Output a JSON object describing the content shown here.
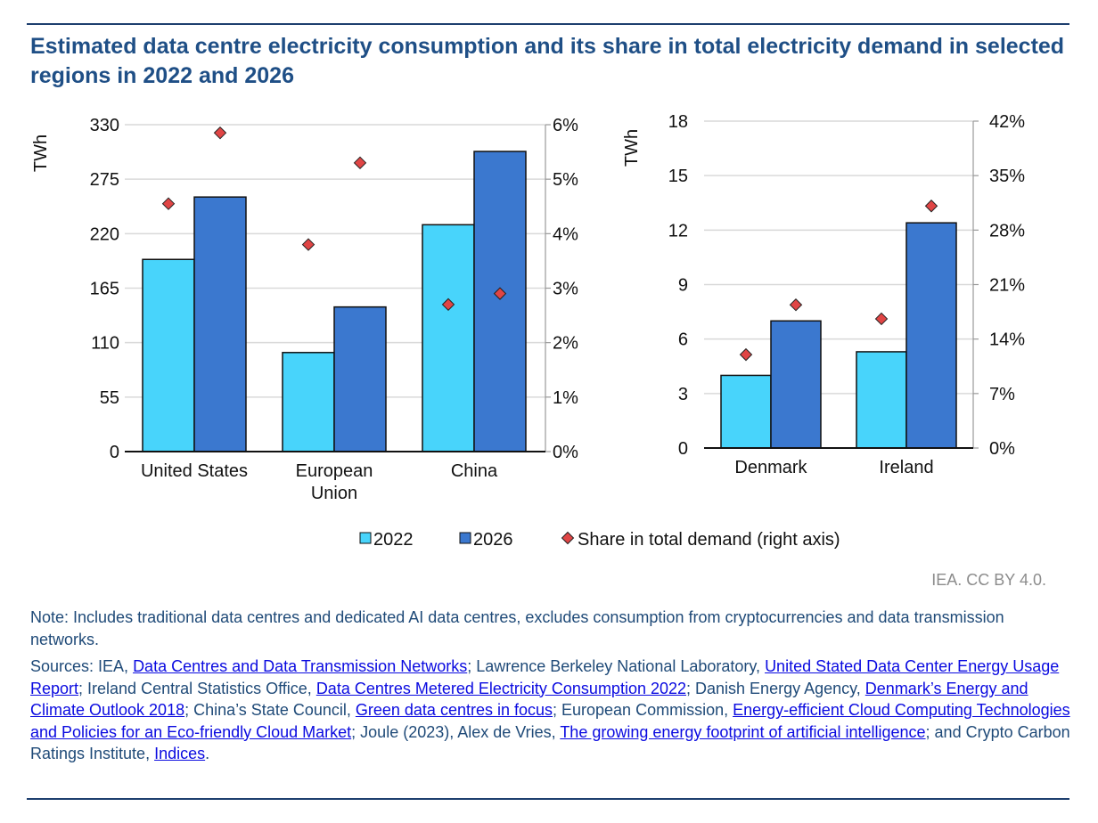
{
  "title": "Estimated data centre electricity consumption and its share in total electricity demand in selected regions in 2022 and 2026",
  "colors": {
    "y2022": "#48d4fb",
    "y2026": "#3b78cf",
    "share": "#e04545",
    "title": "#1f4f86"
  },
  "chart_data": [
    {
      "type": "bar",
      "categories": [
        "United States",
        "European Union",
        "China"
      ],
      "series": [
        {
          "name": "2022",
          "values": [
            194,
            100,
            229
          ]
        },
        {
          "name": "2026",
          "values": [
            257,
            146,
            303
          ]
        }
      ],
      "share_series": {
        "name": "Share in total demand (right axis)",
        "type": "scatter",
        "values_2022": [
          4.55,
          3.8,
          2.7
        ],
        "values_2026": [
          5.85,
          5.3,
          2.9
        ]
      },
      "ylabel": "TWh",
      "ylim": [
        0,
        330
      ],
      "yticks": [
        "0",
        "55",
        "110",
        "165",
        "220",
        "275",
        "330"
      ],
      "y2lim": [
        0,
        6
      ],
      "y2ticks": [
        "0%",
        "1%",
        "2%",
        "3%",
        "4%",
        "5%",
        "6%"
      ],
      "grid": true
    },
    {
      "type": "bar",
      "categories": [
        "Denmark",
        "Ireland"
      ],
      "series": [
        {
          "name": "2022",
          "values": [
            4.0,
            5.3
          ]
        },
        {
          "name": "2026",
          "values": [
            7.0,
            12.4
          ]
        }
      ],
      "share_series": {
        "name": "Share in total demand (right axis)",
        "type": "scatter",
        "values_2022": [
          12,
          16.6
        ],
        "values_2026": [
          18.4,
          31.1
        ]
      },
      "ylabel": "TWh",
      "ylim": [
        0,
        18
      ],
      "yticks": [
        "0",
        "3",
        "6",
        "9",
        "12",
        "15",
        "18"
      ],
      "y2lim": [
        0,
        42
      ],
      "y2ticks": [
        "0%",
        "7%",
        "14%",
        "21%",
        "28%",
        "35%",
        "42%"
      ],
      "grid": true
    }
  ],
  "legend": {
    "items": [
      "2022",
      "2026",
      "Share in total demand (right axis)"
    ],
    "placement": "bottom"
  },
  "credit": "IEA. CC BY 4.0.",
  "note": "Note: Includes traditional data centres and dedicated AI data centres, excludes consumption from cryptocurrencies and data transmission networks.",
  "sources": {
    "t0": "Sources: IEA, ",
    "l0": "Data Centres and Data Transmission Networks",
    "t1": "; Lawrence Berkeley National Laboratory, ",
    "l1": "United Stated Data Center Energy Usage Report",
    "t2": "; Ireland Central Statistics Office, ",
    "l2": "Data Centres Metered Electricity Consumption 2022",
    "t3": "; Danish Energy Agency, ",
    "l3": "Denmark’s Energy and Climate Outlook 2018",
    "t4": "; China’s State Council, ",
    "l4": "Green data centres in focus",
    "t5": "; European Commission, ",
    "l5": "Energy-efficient Cloud Computing Technologies and Policies for an Eco-friendly Cloud Market",
    "t6": "; Joule (2023), Alex de Vries, ",
    "l6": "The growing energy footprint of artificial intelligence",
    "t7": "; and Crypto Carbon Ratings Institute, ",
    "l7": "Indices",
    "t8": "."
  }
}
